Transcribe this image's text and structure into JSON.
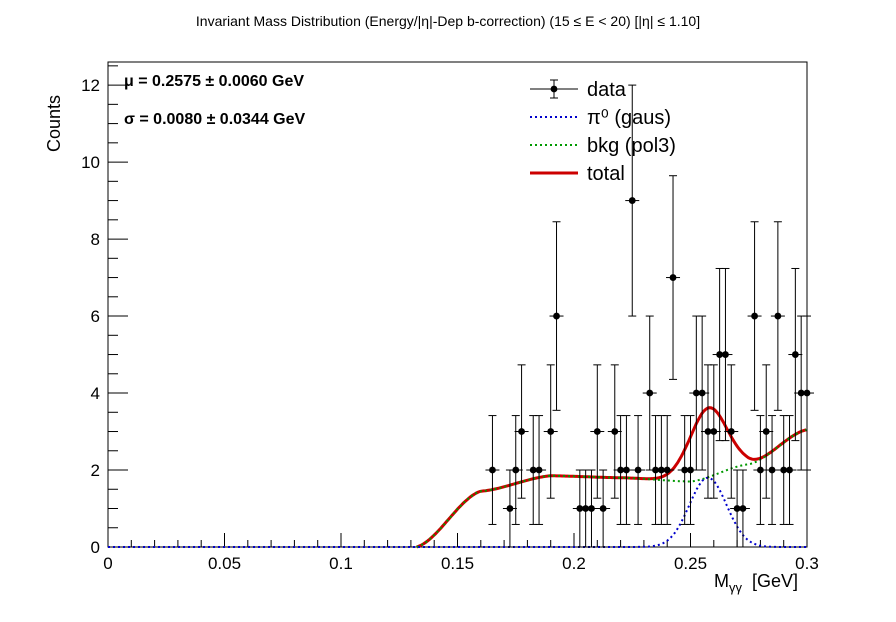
{
  "chart_data": {
    "type": "scatter",
    "title": "Invariant Mass Distribution (Energy/|η|-Dep b-correction)   (15 ≤ E < 20)   [|η| ≤ 1.10]",
    "xlabel": "M",
    "xlabel_sub": "γγ",
    "xlabel_unit": "[GeV]",
    "ylabel": "Counts",
    "xlim": [
      0,
      0.3
    ],
    "ylim": [
      0,
      12.6
    ],
    "x_ticks": [
      0,
      0.05,
      0.1,
      0.15,
      0.2,
      0.25,
      0.3
    ],
    "x_tick_labels": [
      "0",
      "0.05",
      "0.1",
      "0.15",
      "0.2",
      "0.25",
      "0.3"
    ],
    "y_ticks": [
      0,
      2,
      4,
      6,
      8,
      10,
      12
    ],
    "y_tick_labels": [
      "0",
      "2",
      "4",
      "6",
      "8",
      "10",
      "12"
    ],
    "stats": {
      "mu": "μ = 0.2575  ± 0.0060 GeV",
      "sigma": "σ = 0.0080  ± 0.0344 GeV"
    },
    "legend": {
      "position": "top-right",
      "entries": [
        {
          "label": "data",
          "style": "markers-errors",
          "color": "#000000"
        },
        {
          "label": "π⁰ (gaus)",
          "style": "dotted",
          "color": "#0000cc"
        },
        {
          "label": "bkg (pol3)",
          "style": "dotted",
          "color": "#009900"
        },
        {
          "label": "total",
          "style": "solid",
          "color": "#cc0000"
        }
      ]
    },
    "data_series": {
      "name": "data",
      "x": [
        0.165,
        0.1725,
        0.175,
        0.1775,
        0.1825,
        0.185,
        0.19,
        0.1925,
        0.2025,
        0.205,
        0.2075,
        0.21,
        0.2125,
        0.2175,
        0.22,
        0.2225,
        0.225,
        0.2275,
        0.2325,
        0.235,
        0.2375,
        0.24,
        0.2425,
        0.2475,
        0.25,
        0.2525,
        0.255,
        0.2575,
        0.26,
        0.2625,
        0.265,
        0.2675,
        0.27,
        0.2725,
        0.2775,
        0.28,
        0.2825,
        0.285,
        0.2875,
        0.29,
        0.2925,
        0.295,
        0.2975,
        0.3
      ],
      "y": [
        2,
        1,
        2,
        3,
        2,
        2,
        3,
        6,
        1,
        1,
        1,
        3,
        1,
        3,
        2,
        2,
        9,
        2,
        4,
        2,
        2,
        2,
        7,
        2,
        2,
        4,
        4,
        3,
        3,
        5,
        5,
        3,
        1,
        1,
        6,
        2,
        3,
        2,
        6,
        2,
        2,
        5,
        4,
        4
      ]
    },
    "fit_signal": {
      "name": "π⁰ (gaus)",
      "mean": 0.2575,
      "sigma": 0.008,
      "amplitude": 1.8
    },
    "fit_background": {
      "name": "bkg (pol3)",
      "range": [
        0.1325,
        0.3
      ],
      "points_x": [
        0.1325,
        0.16,
        0.19,
        0.22,
        0.25,
        0.275,
        0.3
      ],
      "points_y": [
        0.0,
        1.45,
        1.85,
        1.8,
        1.7,
        2.15,
        3.05
      ]
    },
    "fit_total": {
      "name": "total"
    }
  }
}
